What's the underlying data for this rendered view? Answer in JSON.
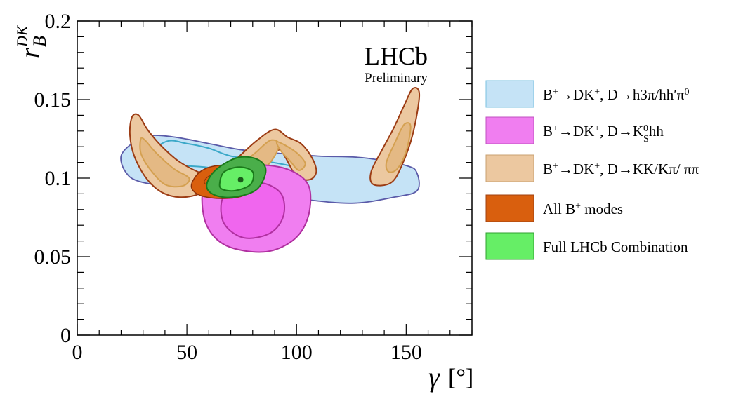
{
  "chart_data": {
    "type": "contour",
    "xlabel": {
      "symbol": "γ",
      "unit": "[°]"
    },
    "ylabel": {
      "symbol": "r",
      "sub": "B",
      "sup": "DK"
    },
    "xlim": [
      0,
      180
    ],
    "ylim": [
      0,
      0.2
    ],
    "x_ticks": [
      "0",
      "50",
      "100",
      "150"
    ],
    "y_ticks": [
      "0",
      "0.05",
      "0.1",
      "0.15",
      "0.2"
    ],
    "x_tick_values": [
      0,
      50,
      100,
      150
    ],
    "y_tick_values": [
      0,
      0.05,
      0.1,
      0.15,
      0.2
    ],
    "grid": false,
    "annotation": {
      "title": "LHCb",
      "subtitle": "Preliminary"
    },
    "best_fit_point": {
      "x": 74.5,
      "y": 0.099
    },
    "colors": {
      "blue": "#c5e3f6",
      "blue_line": "#5a5aa8",
      "blue_inner_line": "#3ba8c8",
      "magenta": "#f07ef0",
      "magenta_line": "#b030a0",
      "tan": "#ecc8a0",
      "tan_line": "#9c3c14",
      "tan_inner_line": "#d4a050",
      "orange": "#d95f0e",
      "orange_line": "#8c3008",
      "green": "#66ee66",
      "green_line": "#1a7a1a"
    },
    "legend": {
      "position": "right",
      "entries": [
        {
          "key": "blue",
          "parts": [
            {
              "t": "B"
            },
            {
              "t": "+",
              "sup": true
            },
            {
              "t": "→DK"
            },
            {
              "t": "+",
              "sup": true
            },
            {
              "t": ", D→h3π/hh′π"
            },
            {
              "t": "0",
              "sup": true
            }
          ]
        },
        {
          "key": "magenta",
          "parts": [
            {
              "t": "B"
            },
            {
              "t": "+",
              "sup": true
            },
            {
              "t": "→DK"
            },
            {
              "t": "+",
              "sup": true
            },
            {
              "t": ", D→K"
            },
            {
              "t": "0",
              "sup": true
            },
            {
              "t": "S",
              "sub": true
            },
            {
              "t": "hh"
            }
          ]
        },
        {
          "key": "tan",
          "parts": [
            {
              "t": "B"
            },
            {
              "t": "+",
              "sup": true
            },
            {
              "t": "→DK"
            },
            {
              "t": "+",
              "sup": true
            },
            {
              "t": ", D→KK/Kπ/ ππ"
            }
          ]
        },
        {
          "key": "orange",
          "parts": [
            {
              "t": "All B"
            },
            {
              "t": "+",
              "sup": true
            },
            {
              "t": " modes"
            }
          ]
        },
        {
          "key": "green",
          "parts": [
            {
              "t": "Full LHCb Combination"
            }
          ]
        }
      ]
    },
    "regions": [
      {
        "key": "blue",
        "level": "outer",
        "points": [
          [
            20,
            0.114
          ],
          [
            25,
            0.122
          ],
          [
            33,
            0.127
          ],
          [
            45,
            0.126
          ],
          [
            60,
            0.122
          ],
          [
            75,
            0.118
          ],
          [
            90,
            0.116
          ],
          [
            110,
            0.114
          ],
          [
            130,
            0.113
          ],
          [
            150,
            0.108
          ],
          [
            155,
            0.103
          ],
          [
            155,
            0.092
          ],
          [
            145,
            0.088
          ],
          [
            125,
            0.084
          ],
          [
            100,
            0.087
          ],
          [
            82,
            0.09
          ],
          [
            65,
            0.092
          ],
          [
            45,
            0.094
          ],
          [
            28,
            0.098
          ],
          [
            22,
            0.104
          ]
        ]
      },
      {
        "key": "blue",
        "level": "inner",
        "points": [
          [
            28,
            0.109
          ],
          [
            40,
            0.123
          ],
          [
            50,
            0.122
          ],
          [
            60,
            0.119
          ],
          [
            70,
            0.114
          ],
          [
            85,
            0.111
          ],
          [
            102,
            0.106
          ],
          [
            103,
            0.1
          ],
          [
            80,
            0.102
          ],
          [
            58,
            0.107
          ],
          [
            40,
            0.108
          ]
        ]
      },
      {
        "key": "tan",
        "level": "outer",
        "points": [
          [
            25,
            0.139
          ],
          [
            28,
            0.14
          ],
          [
            32,
            0.131
          ],
          [
            38,
            0.121
          ],
          [
            46,
            0.111
          ],
          [
            55,
            0.104
          ],
          [
            62,
            0.101
          ],
          [
            60,
            0.093
          ],
          [
            50,
            0.088
          ],
          [
            40,
            0.09
          ],
          [
            32,
            0.099
          ],
          [
            26,
            0.114
          ],
          [
            24,
            0.128
          ]
        ]
      },
      {
        "key": "tan",
        "level": "inner",
        "points": [
          [
            29,
            0.125
          ],
          [
            31,
            0.124
          ],
          [
            36,
            0.116
          ],
          [
            44,
            0.106
          ],
          [
            51,
            0.1
          ],
          [
            48,
            0.095
          ],
          [
            40,
            0.096
          ],
          [
            33,
            0.106
          ],
          [
            29,
            0.116
          ]
        ]
      },
      {
        "key": "tan",
        "level": "outer",
        "points": [
          [
            67,
            0.105
          ],
          [
            74,
            0.114
          ],
          [
            82,
            0.124
          ],
          [
            90,
            0.131
          ],
          [
            96,
            0.126
          ],
          [
            102,
            0.122
          ],
          [
            107,
            0.113
          ],
          [
            109,
            0.104
          ],
          [
            106,
            0.099
          ],
          [
            100,
            0.101
          ],
          [
            95,
            0.113
          ],
          [
            92,
            0.118
          ],
          [
            88,
            0.111
          ],
          [
            82,
            0.101
          ],
          [
            74,
            0.097
          ],
          [
            68,
            0.099
          ]
        ]
      },
      {
        "key": "tan",
        "level": "inner",
        "points": [
          [
            76,
            0.109
          ],
          [
            82,
            0.117
          ],
          [
            88,
            0.124
          ],
          [
            92,
            0.122
          ],
          [
            90,
            0.114
          ],
          [
            85,
            0.106
          ],
          [
            78,
            0.103
          ]
        ]
      },
      {
        "key": "tan",
        "level": "inner",
        "points": [
          [
            91,
            0.123
          ],
          [
            96,
            0.12
          ],
          [
            101,
            0.115
          ],
          [
            104,
            0.109
          ],
          [
            101,
            0.105
          ],
          [
            97,
            0.111
          ],
          [
            93,
            0.117
          ]
        ]
      },
      {
        "key": "tan",
        "level": "outer",
        "points": [
          [
            134,
            0.104
          ],
          [
            139,
            0.118
          ],
          [
            144,
            0.131
          ],
          [
            149,
            0.146
          ],
          [
            153,
            0.157
          ],
          [
            156,
            0.153
          ],
          [
            153,
            0.128
          ],
          [
            148,
            0.108
          ],
          [
            143,
            0.097
          ],
          [
            135,
            0.096
          ]
        ]
      },
      {
        "key": "tan",
        "level": "inner",
        "points": [
          [
            141,
            0.11
          ],
          [
            145,
            0.123
          ],
          [
            149,
            0.134
          ],
          [
            152,
            0.133
          ],
          [
            150,
            0.117
          ],
          [
            146,
            0.106
          ],
          [
            142,
            0.104
          ]
        ]
      },
      {
        "key": "magenta",
        "level": "outer",
        "points": [
          [
            57,
            0.09
          ],
          [
            61,
            0.101
          ],
          [
            72,
            0.107
          ],
          [
            88,
            0.108
          ],
          [
            100,
            0.103
          ],
          [
            106,
            0.093
          ],
          [
            105,
            0.074
          ],
          [
            98,
            0.06
          ],
          [
            85,
            0.053
          ],
          [
            68,
            0.057
          ],
          [
            59,
            0.07
          ]
        ]
      },
      {
        "key": "magenta",
        "level": "inner",
        "points": [
          [
            66,
            0.086
          ],
          [
            72,
            0.095
          ],
          [
            84,
            0.097
          ],
          [
            93,
            0.09
          ],
          [
            94,
            0.076
          ],
          [
            88,
            0.065
          ],
          [
            76,
            0.062
          ],
          [
            67,
            0.071
          ]
        ]
      },
      {
        "key": "orange",
        "level": "outer",
        "points": [
          [
            52,
            0.095
          ],
          [
            56,
            0.104
          ],
          [
            64,
            0.108
          ],
          [
            75,
            0.107
          ],
          [
            80,
            0.097
          ],
          [
            76,
            0.089
          ],
          [
            66,
            0.087
          ],
          [
            56,
            0.089
          ]
        ]
      },
      {
        "key": "orange",
        "level": "inner",
        "points": [
          [
            58,
            0.097
          ],
          [
            62,
            0.103
          ],
          [
            70,
            0.105
          ],
          [
            77,
            0.101
          ],
          [
            74,
            0.093
          ],
          [
            66,
            0.092
          ]
        ]
      },
      {
        "key": "green",
        "level": "outer",
        "points": [
          [
            59,
            0.095
          ],
          [
            63,
            0.105
          ],
          [
            73,
            0.113
          ],
          [
            82,
            0.112
          ],
          [
            86,
            0.105
          ],
          [
            82,
            0.093
          ],
          [
            72,
            0.088
          ],
          [
            63,
            0.089
          ]
        ]
      },
      {
        "key": "green",
        "level": "inner",
        "points": [
          [
            65,
            0.097
          ],
          [
            67,
            0.104
          ],
          [
            74,
            0.107
          ],
          [
            80,
            0.104
          ],
          [
            79,
            0.096
          ],
          [
            72,
            0.092
          ],
          [
            66,
            0.093
          ]
        ]
      }
    ]
  }
}
